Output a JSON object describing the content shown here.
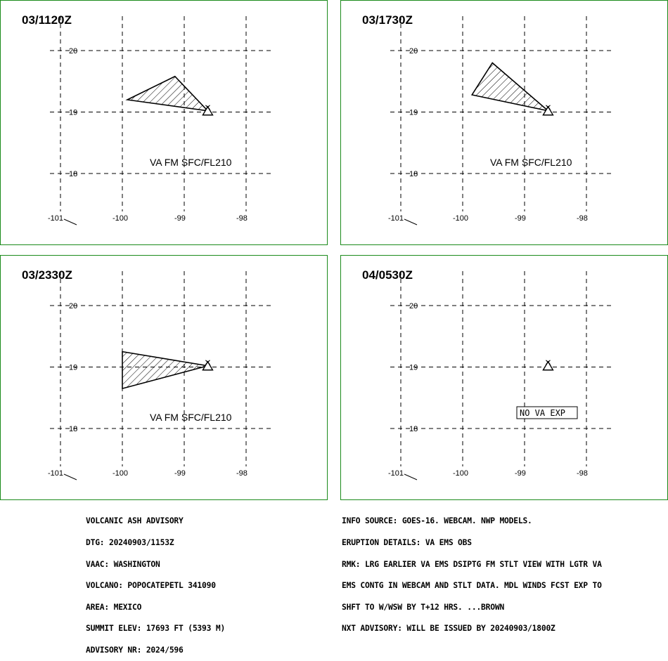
{
  "panels": [
    {
      "time": "03/1120Z",
      "va_label": "VA FM SFC/FL210",
      "lat_labels": [
        "20",
        "19",
        "18"
      ],
      "lon_labels": [
        "-101",
        "-100",
        "-99",
        "-98"
      ],
      "ash_polygon": [
        [
          -99.92,
          19.2
        ],
        [
          -99.15,
          19.58
        ],
        [
          -98.62,
          19.02
        ]
      ],
      "has_ash": true
    },
    {
      "time": "03/1730Z",
      "va_label": "VA FM SFC/FL210",
      "lat_labels": [
        "20",
        "19",
        "18"
      ],
      "lon_labels": [
        "-101",
        "-100",
        "-99",
        "-98"
      ],
      "ash_polygon": [
        [
          -99.85,
          19.28
        ],
        [
          -99.52,
          19.8
        ],
        [
          -98.62,
          19.02
        ]
      ],
      "has_ash": true
    },
    {
      "time": "03/2330Z",
      "va_label": "VA FM SFC/FL210",
      "lat_labels": [
        "20",
        "19",
        "18"
      ],
      "lon_labels": [
        "-101",
        "-100",
        "-99",
        "-98"
      ],
      "ash_polygon": [
        [
          -100.0,
          19.25
        ],
        [
          -98.62,
          19.02
        ],
        [
          -100.0,
          18.65
        ]
      ],
      "has_ash": true
    },
    {
      "time": "04/0530Z",
      "va_label": "NO VA EXP",
      "lat_labels": [
        "20",
        "19",
        "18"
      ],
      "lon_labels": [
        "-101",
        "-100",
        "-99",
        "-98"
      ],
      "ash_polygon": [],
      "has_ash": false
    }
  ],
  "volcano_marker": {
    "lon": -98.62,
    "lat": 19.02
  },
  "advisory_left": [
    "VOLCANIC ASH ADVISORY",
    "DTG: 20240903/1153Z",
    "VAAC: WASHINGTON",
    "VOLCANO: POPOCATEPETL 341090",
    "AREA: MEXICO",
    "SUMMIT ELEV: 17693 FT (5393 M)",
    "ADVISORY NR: 2024/596"
  ],
  "advisory_right": [
    "INFO SOURCE: GOES-16. WEBCAM. NWP MODELS.",
    "ERUPTION DETAILS: VA EMS OBS",
    "RMK: LRG EARLIER VA EMS DSIPTG FM STLT VIEW WITH LGTR VA",
    "EMS CONTG IN WEBCAM AND STLT DATA. MDL WINDS FCST EXP TO",
    "SHFT TO W/WSW BY T+12 HRS. ...BROWN",
    "NXT ADVISORY: WILL BE ISSUED BY 20240903/1800Z"
  ],
  "colors": {
    "panel_border": "#1a8a1a"
  }
}
